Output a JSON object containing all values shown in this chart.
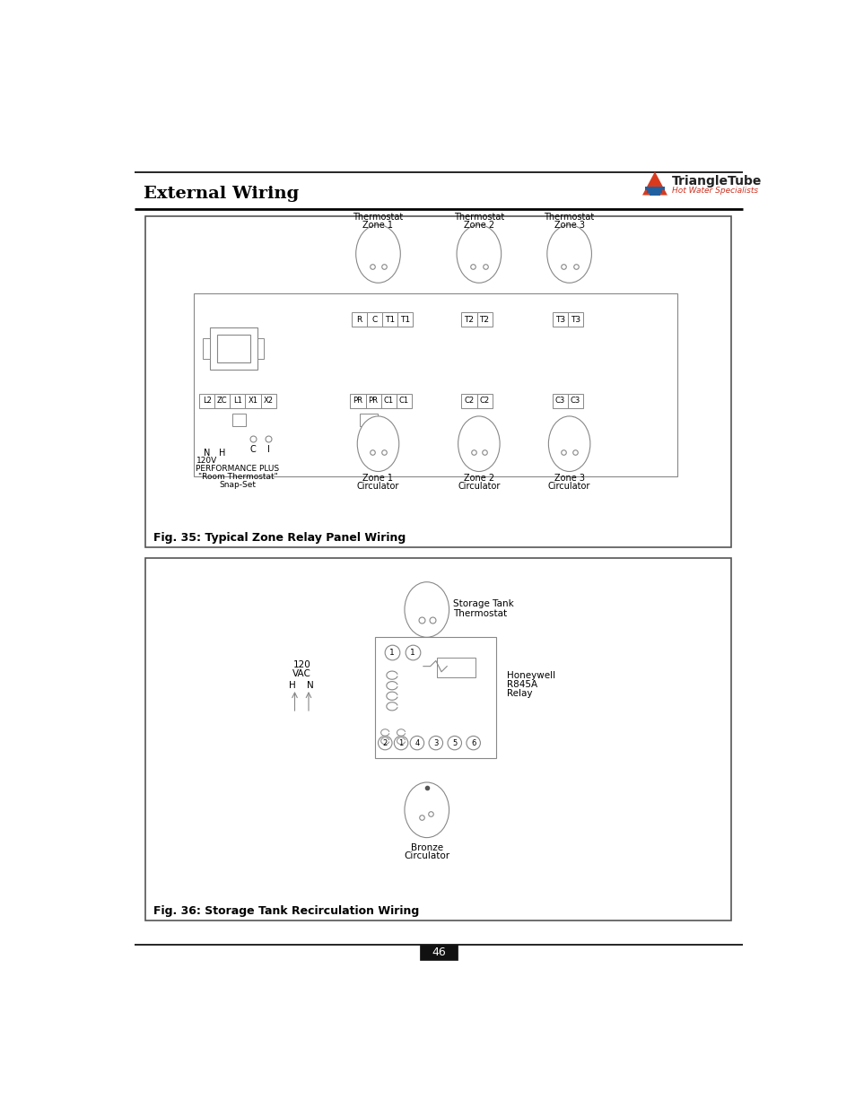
{
  "title": "External Wiring",
  "page_number": "46",
  "fig1_caption": "Fig. 35: Typical Zone Relay Panel Wiring",
  "fig2_caption": "Fig. 36: Storage Tank Recirculation Wiring",
  "bg_color": "#ffffff",
  "line_color": "#666666",
  "text_color": "#000000",
  "logo_triangle_color": "#d93a1e",
  "logo_text": "TriangleTube",
  "logo_subtext": "Hot Water Specialists"
}
